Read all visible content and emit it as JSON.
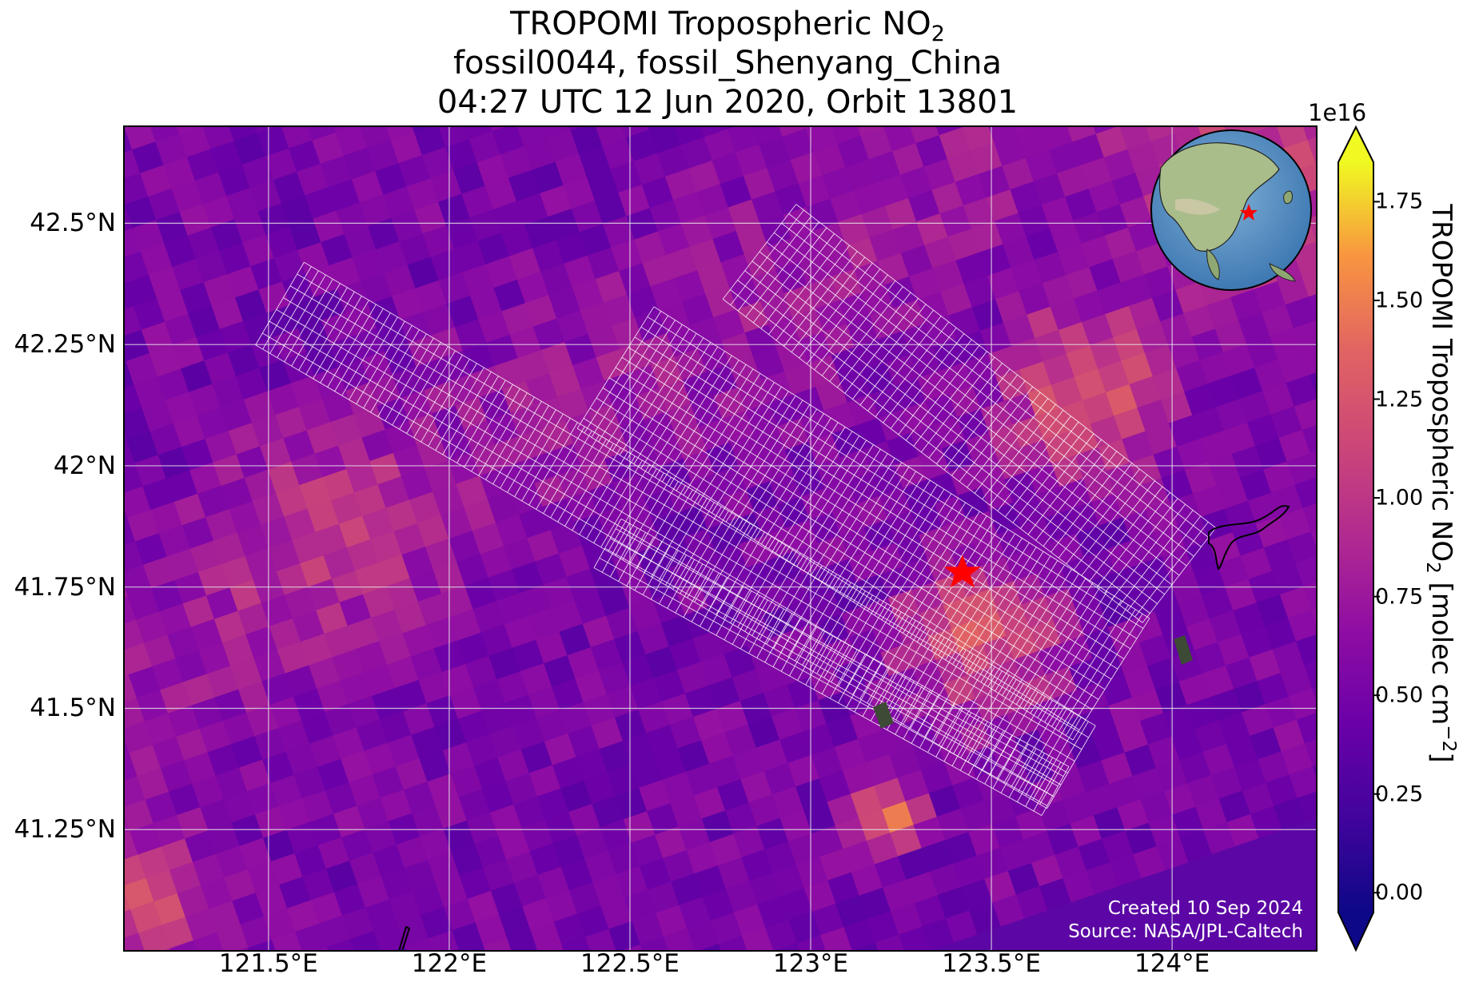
{
  "title": {
    "line1_prefix": "TROPOMI Tropospheric NO",
    "line1_sub": "2",
    "line2": "fossil0044, fossil_Shenyang_China",
    "line3": "04:27 UTC 12 Jun 2020, Orbit 13801"
  },
  "map": {
    "lat_labels": [
      "42.5°N",
      "42.25°N",
      "42°N",
      "41.75°N",
      "41.5°N",
      "41.25°N"
    ],
    "lat_values": [
      42.5,
      42.25,
      42.0,
      41.75,
      41.5,
      41.25
    ],
    "lon_labels": [
      "121.5°E",
      "122°E",
      "122.5°E",
      "123°E",
      "123.5°E",
      "124°E"
    ],
    "lon_values": [
      121.5,
      122.0,
      122.5,
      123.0,
      123.5,
      124.0
    ],
    "lon_range": [
      121.1,
      124.4
    ],
    "lat_range": [
      41.0,
      42.7
    ],
    "target_name": "fossil_Shenyang_China",
    "target_lon": 123.42,
    "target_lat": 41.79,
    "target_marker_color": "#ff0000",
    "gridlines": true,
    "inset_globe": "top-right",
    "credits": [
      "Created 10 Sep 2024",
      "Source: NASA/JPL-Caltech"
    ]
  },
  "colorbar": {
    "colormap": "plasma",
    "exponent_label": "1e16",
    "tick_labels": [
      "0.00",
      "0.25",
      "0.50",
      "0.75",
      "1.00",
      "1.25",
      "1.50",
      "1.75"
    ],
    "tick_values": [
      0.0,
      0.25,
      0.5,
      0.75,
      1.0,
      1.25,
      1.5,
      1.75
    ],
    "range": [
      -0.05,
      1.85
    ],
    "label_prefix": "TROPOMI Tropospheric NO",
    "label_sub": "2",
    "label_middle": " [molec cm",
    "label_sup": "−2",
    "label_suffix": "]",
    "extend": "both"
  }
}
